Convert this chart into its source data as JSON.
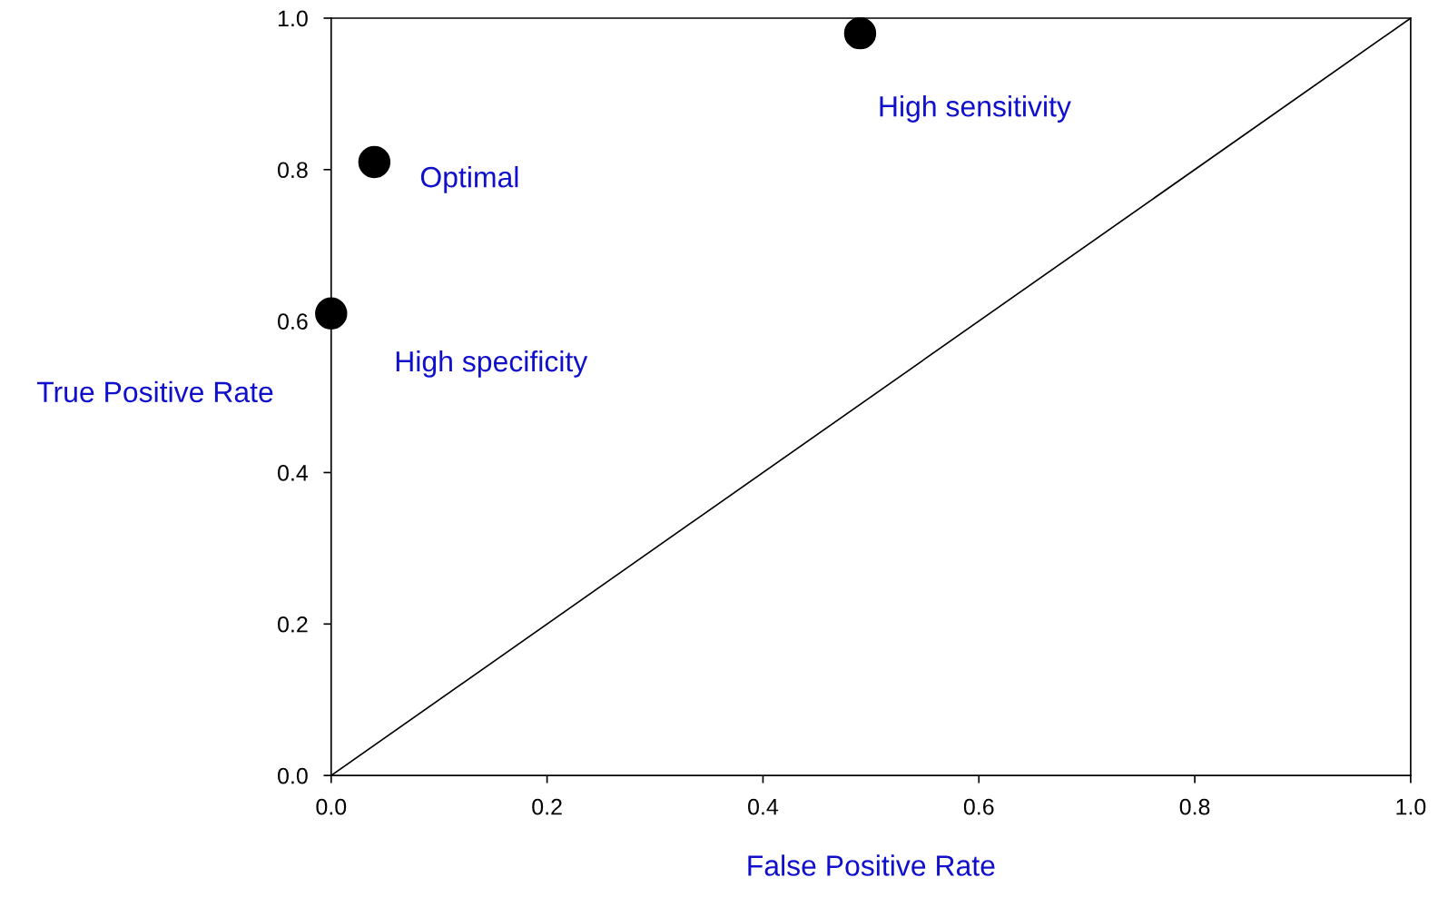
{
  "chart_data": {
    "type": "scatter",
    "xlabel": "False Positive Rate",
    "ylabel": "True Positive Rate",
    "xlim": [
      0,
      1
    ],
    "ylim": [
      0,
      1
    ],
    "xticks": [
      {
        "value": 0,
        "label": "0.0"
      },
      {
        "value": 0.2,
        "label": "0.2"
      },
      {
        "value": 0.4,
        "label": "0.4"
      },
      {
        "value": 0.6,
        "label": "0.6"
      },
      {
        "value": 0.8,
        "label": "0.8"
      },
      {
        "value": 1,
        "label": "1.0"
      }
    ],
    "yticks": [
      {
        "value": 0,
        "label": "0.0"
      },
      {
        "value": 0.2,
        "label": "0.2"
      },
      {
        "value": 0.4,
        "label": "0.4"
      },
      {
        "value": 0.6,
        "label": "0.6"
      },
      {
        "value": 0.8,
        "label": "0.8"
      },
      {
        "value": 1,
        "label": "1.0"
      }
    ],
    "grid": false,
    "legend": false,
    "series": [
      {
        "color": "#000000",
        "marker": "circle",
        "x": [
          0,
          0.04,
          0.49
        ],
        "values": [
          0.61,
          0.81,
          0.98
        ]
      },
      {
        "type": "line",
        "color": "#000000",
        "marker": "none",
        "x": [
          0,
          1
        ],
        "values": [
          0,
          1
        ]
      }
    ],
    "annotations": [
      {
        "text": "High specificity",
        "x": 0,
        "y": 0.61
      },
      {
        "text": "Optimal",
        "x": 0.04,
        "y": 0.81
      },
      {
        "text": "High sensitivity",
        "x": 0.49,
        "y": 0.98
      }
    ]
  }
}
